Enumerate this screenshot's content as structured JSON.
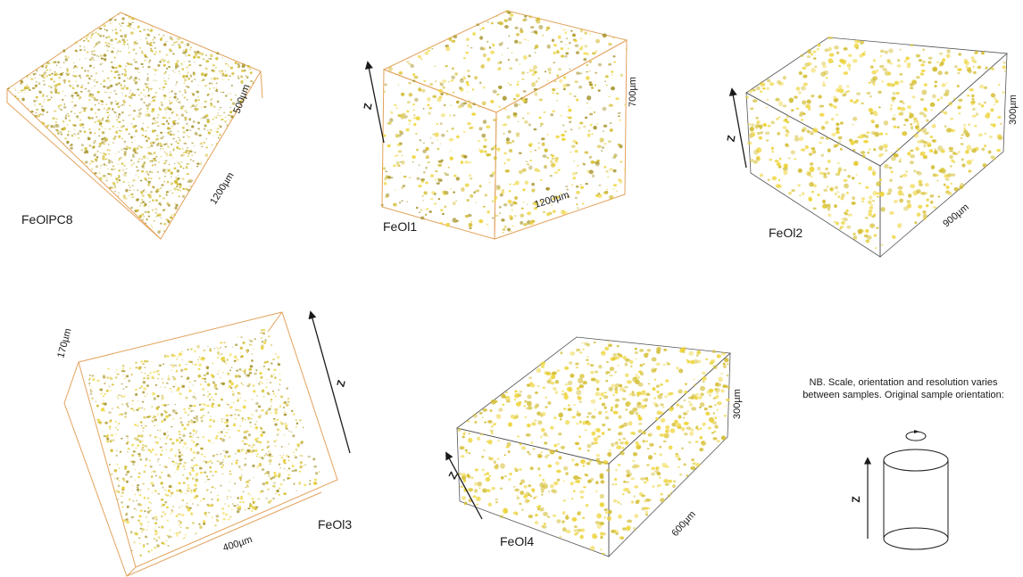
{
  "colors": {
    "particle_dark": "#a8952e",
    "particle_mid": "#d4be35",
    "particle_bright": "#eed43a",
    "box_orange": "#e3a25c",
    "box_grey": "#555555"
  },
  "samples": [
    {
      "name": "FeOlPC8",
      "dims": [
        "500µm",
        "1200µm"
      ]
    },
    {
      "name": "FeOl1",
      "dims": [
        "700µm",
        "1200µm"
      ],
      "z_label": "Z"
    },
    {
      "name": "FeOl2",
      "dims": [
        "300µm",
        "900µm"
      ],
      "z_label": "Z"
    },
    {
      "name": "FeOl3",
      "dims": [
        "170µm",
        "400µm"
      ],
      "z_label": "Z"
    },
    {
      "name": "FeOl4",
      "dims": [
        "300µm",
        "600µm"
      ],
      "z_label": "Z"
    }
  ],
  "note": {
    "line1": "NB. Scale, orientation and resolution varies",
    "line2": "between samples. Original sample orientation:",
    "z_label": "Z"
  }
}
